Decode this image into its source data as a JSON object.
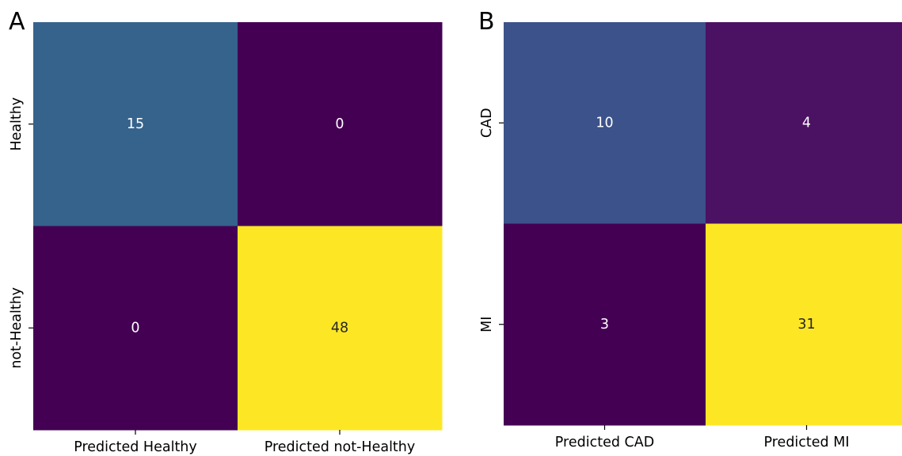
{
  "chart_data": [
    {
      "type": "heatmap",
      "panel_label": "A",
      "x_tick_labels": [
        "Predicted Healthy",
        "Predicted not-Healthy"
      ],
      "y_tick_labels": [
        "Healthy",
        "not-Healthy"
      ],
      "values": [
        [
          15,
          0
        ],
        [
          0,
          48
        ]
      ],
      "colors": [
        [
          "#35638c",
          "#440154"
        ],
        [
          "#440154",
          "#fde725"
        ]
      ],
      "text_colors": [
        [
          "#ffffff",
          "#ffffff"
        ],
        [
          "#ffffff",
          "#262626"
        ]
      ],
      "colormap": "viridis",
      "colorbar": false
    },
    {
      "type": "heatmap",
      "panel_label": "B",
      "x_tick_labels": [
        "Predicted CAD",
        "Predicted MI"
      ],
      "y_tick_labels": [
        "CAD",
        "MI"
      ],
      "values": [
        [
          10,
          4
        ],
        [
          3,
          31
        ]
      ],
      "colors": [
        [
          "#3c528a",
          "#4b1163"
        ],
        [
          "#440154",
          "#fde725"
        ]
      ],
      "text_colors": [
        [
          "#ffffff",
          "#ffffff"
        ],
        [
          "#ffffff",
          "#262626"
        ]
      ],
      "colormap": "viridis",
      "colorbar": false
    }
  ]
}
